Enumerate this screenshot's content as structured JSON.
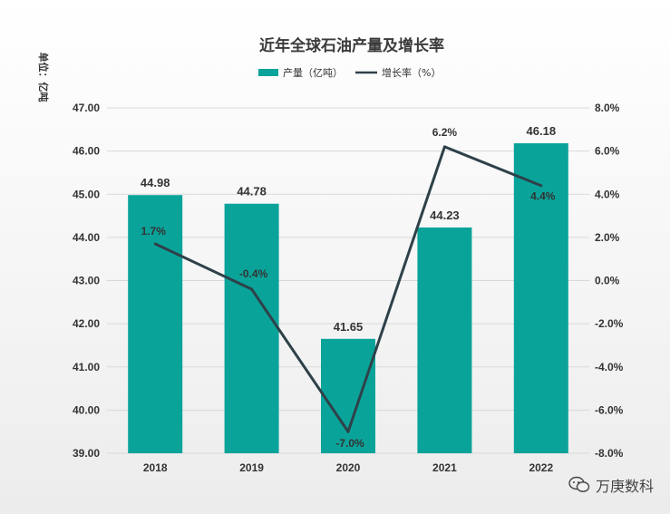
{
  "chart_data": {
    "type": "bar",
    "title": "近年全球石油产量及增长率",
    "unit_label": "单位：亿吨",
    "categories": [
      "2018",
      "2019",
      "2020",
      "2021",
      "2022"
    ],
    "series": [
      {
        "name": "产量（亿吨）",
        "kind": "bar",
        "axis": "left",
        "values": [
          44.98,
          44.78,
          41.65,
          44.23,
          46.18
        ],
        "labels": [
          "44.98",
          "44.78",
          "41.65",
          "44.23",
          "46.18"
        ]
      },
      {
        "name": "增长率（%）",
        "kind": "line",
        "axis": "right",
        "values": [
          1.7,
          -0.4,
          -7.0,
          6.2,
          4.4
        ],
        "labels": [
          "1.7%",
          "-0.4%",
          "-7.0%",
          "6.2%",
          "4.4%"
        ]
      }
    ],
    "left_axis": {
      "min": 39,
      "max": 47,
      "step": 1,
      "tick_labels": [
        "39.00",
        "40.00",
        "41.00",
        "42.00",
        "43.00",
        "44.00",
        "45.00",
        "46.00",
        "47.00"
      ]
    },
    "right_axis": {
      "min": -8,
      "max": 8,
      "step": 2,
      "tick_labels": [
        "-8.0%",
        "-6.0%",
        "-4.0%",
        "-2.0%",
        "0.0%",
        "2.0%",
        "4.0%",
        "6.0%",
        "8.0%"
      ]
    },
    "colors": {
      "bar": "#0aa39a",
      "line": "#2e4149"
    }
  },
  "watermark": "万庚数科"
}
